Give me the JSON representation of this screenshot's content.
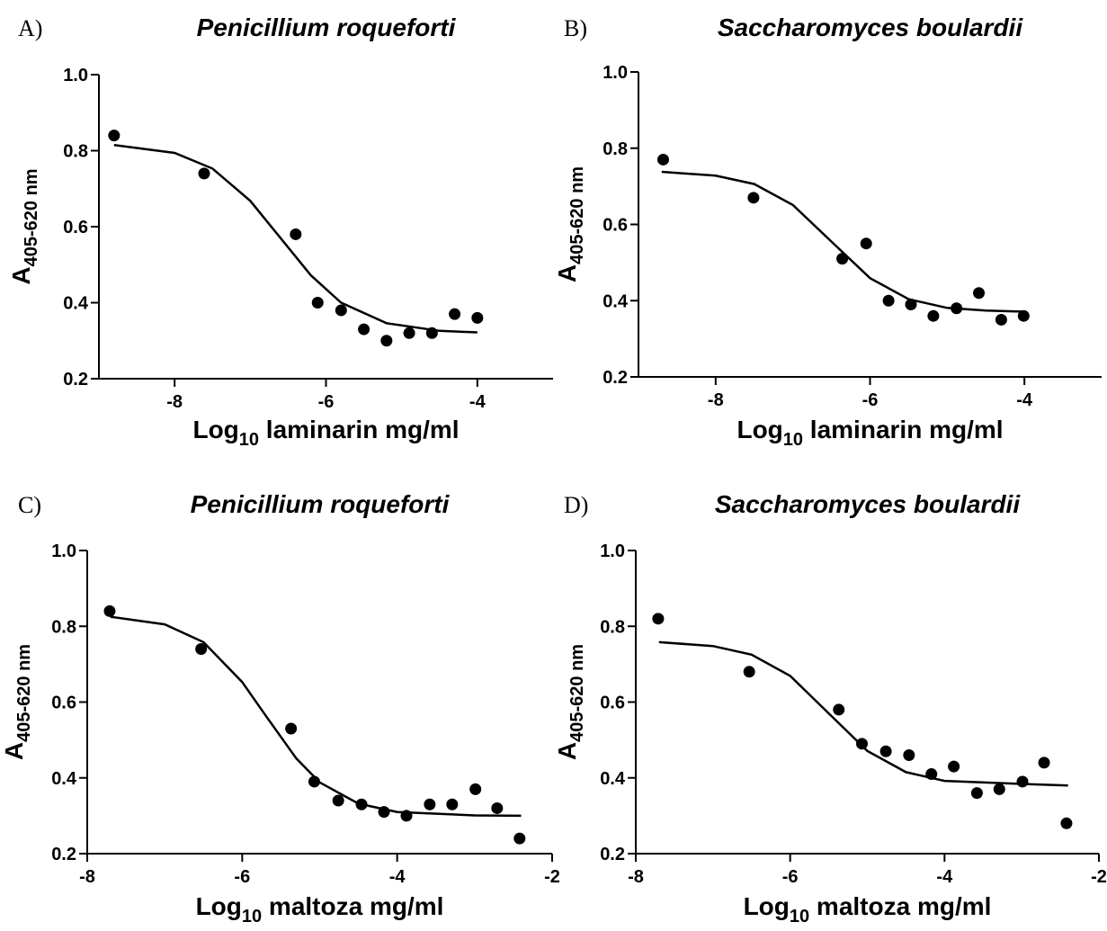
{
  "chart_data": [
    {
      "type": "scatter",
      "panel": "A)",
      "title": "Penicillium roqueforti",
      "xlabel": [
        "Log",
        "10",
        " laminarin mg/ml"
      ],
      "ylabel": [
        "A",
        "405-620 nm"
      ],
      "xlim": [
        -9,
        -3
      ],
      "xticks": [
        -8,
        -6,
        -4
      ],
      "ylim": [
        0.2,
        1.0
      ],
      "yticks": [
        0.2,
        0.4,
        0.6,
        0.8,
        {
          "value": 1.0,
          "label": "1.0"
        }
      ],
      "series": [
        {
          "type": "scatter",
          "color": "#000000",
          "x": [
            -8.8,
            -7.61,
            -6.4,
            -6.11,
            -5.8,
            -5.5,
            -5.2,
            -4.9,
            -4.6,
            -4.3,
            -4.0
          ],
          "values": [
            0.84,
            0.74,
            0.58,
            0.4,
            0.38,
            0.33,
            0.3,
            0.32,
            0.32,
            0.37,
            0.36
          ]
        },
        {
          "type": "line",
          "color": "#000000",
          "x": [
            -8.8,
            -8,
            -7.5,
            -7,
            -6.6,
            -6.2,
            -5.8,
            -5.2,
            -4.5,
            -4
          ],
          "values": [
            0.815,
            0.794,
            0.753,
            0.668,
            0.57,
            0.472,
            0.4,
            0.346,
            0.326,
            0.322
          ]
        }
      ]
    },
    {
      "type": "scatter",
      "panel": "B)",
      "title": "Saccharomyces boulardii",
      "xlabel": [
        "Log",
        "10",
        " laminarin mg/ml"
      ],
      "ylabel": [
        "A",
        "405-620 nm"
      ],
      "xlim": [
        -9,
        -3
      ],
      "xticks": [
        -8,
        -6,
        -4
      ],
      "ylim": [
        0.2,
        1.0
      ],
      "yticks": [
        0.2,
        0.4,
        0.6,
        0.8,
        {
          "value": 1.0,
          "label": "1.0"
        }
      ],
      "series": [
        {
          "type": "scatter",
          "color": "#000000",
          "x": [
            -8.68,
            -7.51,
            -6.36,
            -6.05,
            -5.76,
            -5.47,
            -5.18,
            -4.88,
            -4.59,
            -4.3,
            -4.01
          ],
          "values": [
            0.77,
            0.67,
            0.51,
            0.55,
            0.4,
            0.39,
            0.36,
            0.38,
            0.42,
            0.35,
            0.36
          ]
        },
        {
          "type": "line",
          "color": "#000000",
          "x": [
            -8.7,
            -8,
            -7.5,
            -7,
            -6.5,
            -6,
            -5.5,
            -5,
            -4.5,
            -4
          ],
          "values": [
            0.738,
            0.728,
            0.706,
            0.651,
            0.555,
            0.459,
            0.404,
            0.381,
            0.374,
            0.371
          ]
        }
      ]
    },
    {
      "type": "scatter",
      "panel": "C)",
      "title": "Penicillium roqueforti",
      "xlabel": [
        "Log",
        "10",
        " maltoza mg/ml"
      ],
      "ylabel": [
        "A",
        "405-620 nm"
      ],
      "xlim": [
        -8,
        -2
      ],
      "xticks": [
        -8,
        -6,
        -4,
        -2
      ],
      "ylim": [
        0.2,
        1.0
      ],
      "yticks": [
        0.2,
        0.4,
        0.6,
        0.8,
        {
          "value": 1.0,
          "label": "1.0"
        }
      ],
      "series": [
        {
          "type": "scatter",
          "color": "#000000",
          "x": [
            -7.71,
            -6.53,
            -5.37,
            -5.07,
            -4.76,
            -4.46,
            -4.17,
            -3.88,
            -3.58,
            -3.29,
            -2.99,
            -2.71,
            -2.42
          ],
          "values": [
            0.84,
            0.74,
            0.53,
            0.39,
            0.34,
            0.33,
            0.31,
            0.3,
            0.33,
            0.33,
            0.37,
            0.32,
            0.24
          ]
        },
        {
          "type": "line",
          "color": "#000000",
          "x": [
            -7.7,
            -7,
            -6.5,
            -6,
            -5.7,
            -5.3,
            -5,
            -4.5,
            -4,
            -3,
            -2.4
          ],
          "values": [
            0.825,
            0.805,
            0.758,
            0.653,
            0.565,
            0.451,
            0.388,
            0.332,
            0.31,
            0.301,
            0.3
          ]
        }
      ]
    },
    {
      "type": "scatter",
      "panel": "D)",
      "title": "Saccharomyces boulardii",
      "xlabel": [
        "Log",
        "10",
        " maltoza mg/ml"
      ],
      "ylabel": [
        "A",
        "405-620 nm"
      ],
      "xlim": [
        -8,
        -2
      ],
      "xticks": [
        -8,
        -6,
        -4,
        -2
      ],
      "ylim": [
        0.2,
        1.0
      ],
      "yticks": [
        0.2,
        0.4,
        0.6,
        0.8,
        {
          "value": 1.0,
          "label": "1.0"
        }
      ],
      "series": [
        {
          "type": "scatter",
          "color": "#000000",
          "x": [
            -7.71,
            -6.53,
            -5.37,
            -5.07,
            -4.76,
            -4.46,
            -4.17,
            -3.88,
            -3.58,
            -3.29,
            -2.99,
            -2.71,
            -2.42
          ],
          "values": [
            0.82,
            0.68,
            0.58,
            0.49,
            0.47,
            0.46,
            0.41,
            0.43,
            0.36,
            0.37,
            0.39,
            0.44,
            0.28
          ]
        },
        {
          "type": "line",
          "color": "#000000",
          "x": [
            -7.7,
            -7,
            -6.5,
            -6,
            -5.5,
            -5,
            -4.5,
            -4,
            -3,
            -2.4
          ],
          "values": [
            0.758,
            0.748,
            0.725,
            0.669,
            0.57,
            0.471,
            0.415,
            0.392,
            0.384,
            0.38
          ]
        }
      ]
    }
  ]
}
